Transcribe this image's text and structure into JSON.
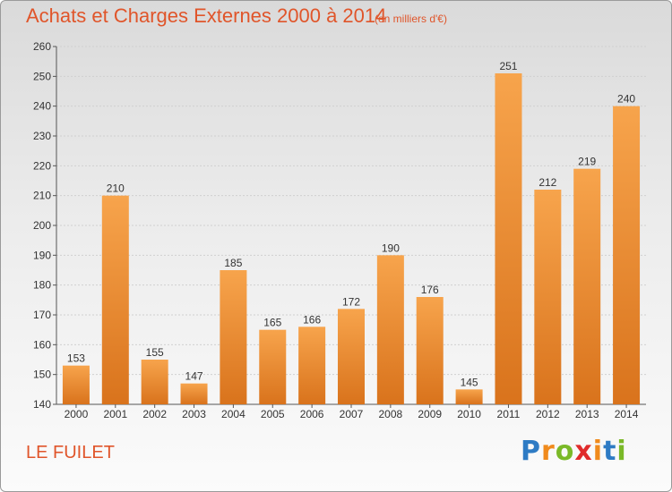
{
  "header": {
    "title": "Achats et Charges Externes 2000 à 2014",
    "subtitle": "(en milliers d'€)"
  },
  "footer": {
    "place": "LE FUILET",
    "logo_letters": [
      "P",
      "r",
      "o",
      "x",
      "i",
      "t",
      "i"
    ],
    "logo_colors": [
      "#2e7bc4",
      "#f08a1c",
      "#7ab928",
      "#e02b2b",
      "#f08a1c",
      "#2e7bc4",
      "#7ab928"
    ]
  },
  "colors": {
    "bar_top": "#f7a44c",
    "bar_bottom": "#d9731c",
    "accent": "#e0552a"
  },
  "chart_data": {
    "type": "bar",
    "title": "Achats et Charges Externes 2000 à 2014",
    "subtitle": "(en milliers d'€)",
    "categories": [
      "2000",
      "2001",
      "2002",
      "2003",
      "2004",
      "2005",
      "2006",
      "2007",
      "2008",
      "2009",
      "2010",
      "2011",
      "2012",
      "2013",
      "2014"
    ],
    "values": [
      153,
      210,
      155,
      147,
      185,
      165,
      166,
      172,
      190,
      176,
      145,
      251,
      212,
      219,
      240
    ],
    "ylim": [
      140,
      260
    ],
    "yticks": [
      140,
      150,
      160,
      170,
      180,
      190,
      200,
      210,
      220,
      230,
      240,
      250,
      260
    ],
    "grid": true
  }
}
